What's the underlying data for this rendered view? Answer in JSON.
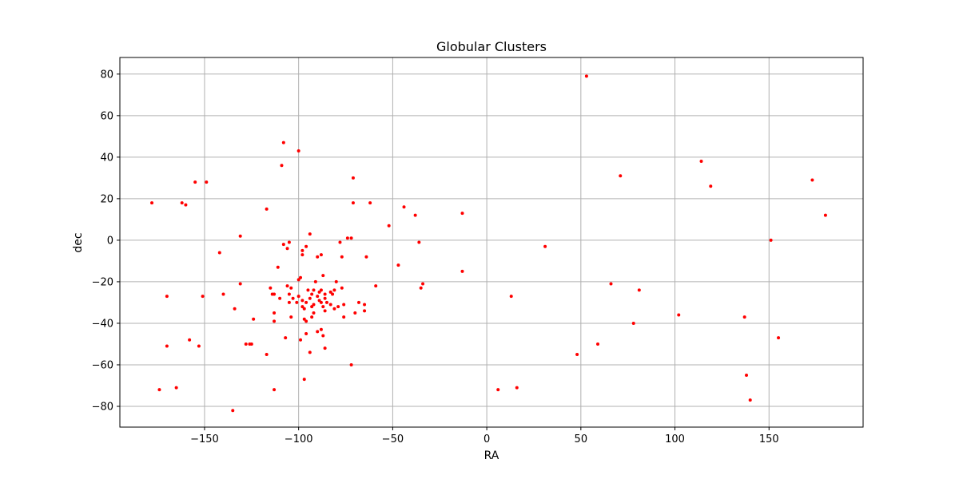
{
  "chart_data": {
    "type": "scatter",
    "title": "Globular Clusters",
    "xlabel": "RA",
    "ylabel": "dec",
    "xlim": [
      -195,
      200
    ],
    "ylim": [
      -90,
      88
    ],
    "xticks": [
      -150,
      -100,
      -50,
      0,
      50,
      100,
      150
    ],
    "yticks": [
      -80,
      -60,
      -40,
      -20,
      0,
      20,
      40,
      60,
      80
    ],
    "grid": true,
    "marker_color": "#ff0000",
    "points": [
      [
        53,
        79
      ],
      [
        -108,
        47
      ],
      [
        -100,
        43
      ],
      [
        -109,
        36
      ],
      [
        114,
        38
      ],
      [
        71,
        31
      ],
      [
        173,
        29
      ],
      [
        119,
        26
      ],
      [
        -71,
        30
      ],
      [
        -155,
        28
      ],
      [
        -149,
        28
      ],
      [
        -178,
        18
      ],
      [
        -162,
        18
      ],
      [
        -160,
        17
      ],
      [
        -71,
        18
      ],
      [
        -62,
        18
      ],
      [
        -44,
        16
      ],
      [
        -38,
        12
      ],
      [
        -13,
        13
      ],
      [
        180,
        12
      ],
      [
        -117,
        15
      ],
      [
        -52,
        7
      ],
      [
        -131,
        2
      ],
      [
        -94,
        3
      ],
      [
        -74,
        1
      ],
      [
        -72,
        1
      ],
      [
        -36,
        -1
      ],
      [
        151,
        0
      ],
      [
        -105,
        -1
      ],
      [
        -78,
        -1
      ],
      [
        -108,
        -2
      ],
      [
        -96,
        -3
      ],
      [
        -106,
        -4
      ],
      [
        -98,
        -5
      ],
      [
        -98,
        -7
      ],
      [
        -90,
        -8
      ],
      [
        -88,
        -7
      ],
      [
        -77,
        -8
      ],
      [
        -142,
        -6
      ],
      [
        -64,
        -8
      ],
      [
        31,
        -3
      ],
      [
        -111,
        -13
      ],
      [
        -47,
        -12
      ],
      [
        -13,
        -15
      ],
      [
        -99,
        -18
      ],
      [
        -100,
        -19
      ],
      [
        -91,
        -20
      ],
      [
        -131,
        -21
      ],
      [
        -87,
        -17
      ],
      [
        -80,
        -20
      ],
      [
        -34,
        -21
      ],
      [
        -59,
        -22
      ],
      [
        -35,
        -23
      ],
      [
        -115,
        -23
      ],
      [
        -106,
        -22
      ],
      [
        -104,
        -23
      ],
      [
        -95,
        -24
      ],
      [
        -92,
        -24
      ],
      [
        -88,
        -24
      ],
      [
        -83,
        -25
      ],
      [
        -81,
        -24
      ],
      [
        -77,
        -23
      ],
      [
        -140,
        -26
      ],
      [
        -113,
        -26
      ],
      [
        -114,
        -26
      ],
      [
        -105,
        -26
      ],
      [
        -100,
        -27
      ],
      [
        -93,
        -26
      ],
      [
        -89,
        -25
      ],
      [
        -86,
        -26
      ],
      [
        -82,
        -26
      ],
      [
        -170,
        -27
      ],
      [
        -151,
        -27
      ],
      [
        13,
        -27
      ],
      [
        66,
        -21
      ],
      [
        81,
        -24
      ],
      [
        -110,
        -28
      ],
      [
        -103,
        -28
      ],
      [
        -98,
        -29
      ],
      [
        -94,
        -28
      ],
      [
        -90,
        -27
      ],
      [
        -86,
        -28
      ],
      [
        -101,
        -30
      ],
      [
        -96,
        -30
      ],
      [
        -89,
        -29
      ],
      [
        -85,
        -30
      ],
      [
        -105,
        -30
      ],
      [
        -98,
        -32
      ],
      [
        -92,
        -31
      ],
      [
        -88,
        -30
      ],
      [
        -83,
        -31
      ],
      [
        -79,
        -32
      ],
      [
        -76,
        -31
      ],
      [
        -68,
        -30
      ],
      [
        -65,
        -31
      ],
      [
        -134,
        -33
      ],
      [
        -97,
        -33
      ],
      [
        -93,
        -32
      ],
      [
        -87,
        -32
      ],
      [
        -81,
        -33
      ],
      [
        -86,
        -34
      ],
      [
        -92,
        -35
      ],
      [
        -70,
        -35
      ],
      [
        -65,
        -34
      ],
      [
        -113,
        -35
      ],
      [
        -104,
        -37
      ],
      [
        -93,
        -37
      ],
      [
        -76,
        -37
      ],
      [
        -124,
        -38
      ],
      [
        -113,
        -39
      ],
      [
        -97,
        -38
      ],
      [
        -96,
        -39
      ],
      [
        78,
        -40
      ],
      [
        102,
        -36
      ],
      [
        137,
        -37
      ],
      [
        -90,
        -44
      ],
      [
        -88,
        -43
      ],
      [
        -96,
        -45
      ],
      [
        -87,
        -46
      ],
      [
        -107,
        -47
      ],
      [
        -99,
        -48
      ],
      [
        -158,
        -48
      ],
      [
        -128,
        -50
      ],
      [
        -125,
        -50
      ],
      [
        -126,
        -50
      ],
      [
        -153,
        -51
      ],
      [
        -170,
        -51
      ],
      [
        -86,
        -52
      ],
      [
        -94,
        -54
      ],
      [
        -117,
        -55
      ],
      [
        48,
        -55
      ],
      [
        59,
        -50
      ],
      [
        155,
        -47
      ],
      [
        -72,
        -60
      ],
      [
        138,
        -65
      ],
      [
        -97,
        -67
      ],
      [
        -174,
        -72
      ],
      [
        -165,
        -71
      ],
      [
        -113,
        -72
      ],
      [
        6,
        -72
      ],
      [
        16,
        -71
      ],
      [
        140,
        -77
      ],
      [
        -135,
        -82
      ]
    ]
  }
}
